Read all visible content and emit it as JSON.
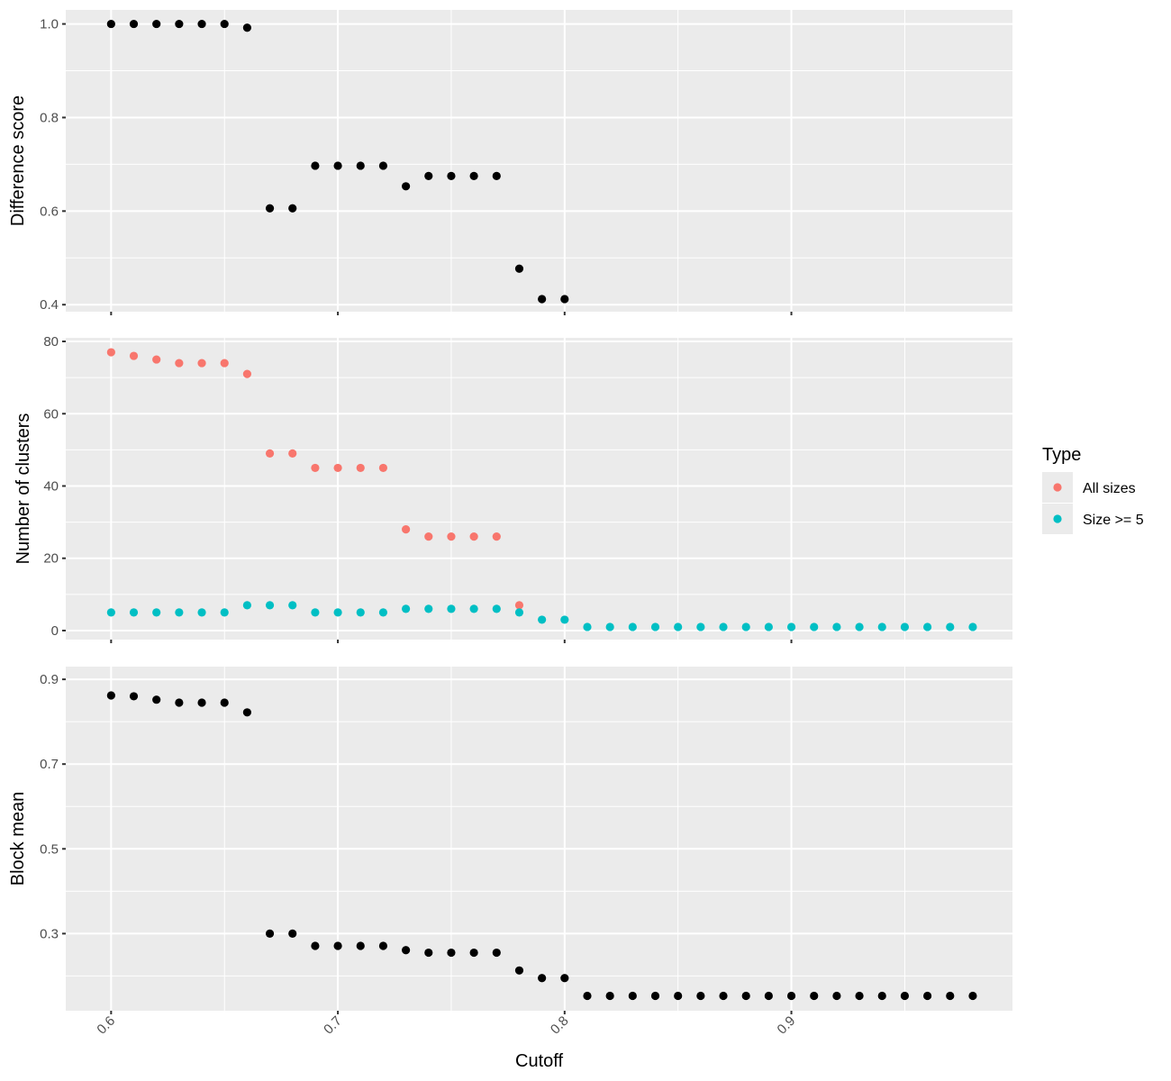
{
  "chart_data": [
    {
      "type": "scatter",
      "ylabel": "Difference score",
      "xlabel": "",
      "xlim": [
        0.58,
        0.9975
      ],
      "ylim": [
        0.385,
        1.03
      ],
      "y_ticks": [
        0.4,
        0.6,
        0.8,
        1.0
      ],
      "y_tick_labels": [
        "0.4",
        "0.6",
        "0.8",
        "1.0"
      ],
      "x_ticks": [
        0.6,
        0.7,
        0.8,
        0.9
      ],
      "grid": true,
      "color": "#000000",
      "x": [
        0.6,
        0.61,
        0.62,
        0.63,
        0.64,
        0.65,
        0.66,
        0.67,
        0.68,
        0.69,
        0.7,
        0.71,
        0.72,
        0.73,
        0.74,
        0.75,
        0.76,
        0.77,
        0.78,
        0.79,
        0.8
      ],
      "y": [
        1.0,
        1.0,
        1.0,
        1.0,
        1.0,
        1.0,
        0.992,
        0.606,
        0.606,
        0.697,
        0.697,
        0.697,
        0.697,
        0.653,
        0.675,
        0.675,
        0.675,
        0.675,
        0.477,
        0.412,
        0.412
      ]
    },
    {
      "type": "scatter",
      "ylabel": "Number of clusters",
      "xlabel": "",
      "xlim": [
        0.58,
        0.9975
      ],
      "ylim": [
        -2.5,
        81
      ],
      "y_ticks": [
        0,
        20,
        40,
        60,
        80
      ],
      "y_tick_labels": [
        "0",
        "20",
        "40",
        "60",
        "80"
      ],
      "x_ticks": [
        0.6,
        0.7,
        0.8,
        0.9
      ],
      "grid": true,
      "legend": {
        "title": "Type",
        "position": "right",
        "entries": [
          {
            "label": "All sizes",
            "color": "#F8766D"
          },
          {
            "label": "Size >= 5",
            "color": "#00BFC4"
          }
        ]
      },
      "series": [
        {
          "name": "All sizes",
          "color": "#F8766D",
          "x": [
            0.6,
            0.61,
            0.62,
            0.63,
            0.64,
            0.65,
            0.66,
            0.67,
            0.68,
            0.69,
            0.7,
            0.71,
            0.72,
            0.73,
            0.74,
            0.75,
            0.76,
            0.77,
            0.78
          ],
          "y": [
            77,
            76,
            75,
            74,
            74,
            74,
            71,
            49,
            49,
            45,
            45,
            45,
            45,
            28,
            26,
            26,
            26,
            26,
            7
          ]
        },
        {
          "name": "Size >= 5",
          "color": "#00BFC4",
          "x": [
            0.6,
            0.61,
            0.62,
            0.63,
            0.64,
            0.65,
            0.66,
            0.67,
            0.68,
            0.69,
            0.7,
            0.71,
            0.72,
            0.73,
            0.74,
            0.75,
            0.76,
            0.77,
            0.78,
            0.79,
            0.8,
            0.81,
            0.82,
            0.83,
            0.84,
            0.85,
            0.86,
            0.87,
            0.88,
            0.89,
            0.9,
            0.91,
            0.92,
            0.93,
            0.94,
            0.95,
            0.96,
            0.97,
            0.98
          ],
          "y": [
            5,
            5,
            5,
            5,
            5,
            5,
            7,
            7,
            7,
            5,
            5,
            5,
            5,
            6,
            6,
            6,
            6,
            6,
            5,
            3,
            3,
            1,
            1,
            1,
            1,
            1,
            1,
            1,
            1,
            1,
            1,
            1,
            1,
            1,
            1,
            1,
            1,
            1,
            1
          ]
        }
      ]
    },
    {
      "type": "scatter",
      "ylabel": "Block mean",
      "xlabel": "Cutoff",
      "xlim": [
        0.58,
        0.9975
      ],
      "ylim": [
        0.118,
        0.93
      ],
      "y_ticks": [
        0.3,
        0.5,
        0.7,
        0.9
      ],
      "y_tick_labels": [
        "0.3",
        "0.5",
        "0.7",
        "0.9"
      ],
      "x_ticks": [
        0.6,
        0.7,
        0.8,
        0.9
      ],
      "x_tick_labels": [
        "0.6",
        "0.7",
        "0.8",
        "0.9"
      ],
      "grid": true,
      "color": "#000000",
      "x": [
        0.6,
        0.61,
        0.62,
        0.63,
        0.64,
        0.65,
        0.66,
        0.67,
        0.68,
        0.69,
        0.7,
        0.71,
        0.72,
        0.73,
        0.74,
        0.75,
        0.76,
        0.77,
        0.78,
        0.79,
        0.8,
        0.81,
        0.82,
        0.83,
        0.84,
        0.85,
        0.86,
        0.87,
        0.88,
        0.89,
        0.9,
        0.91,
        0.92,
        0.93,
        0.94,
        0.95,
        0.96,
        0.97,
        0.98
      ],
      "y": [
        0.862,
        0.86,
        0.852,
        0.845,
        0.845,
        0.845,
        0.822,
        0.3,
        0.3,
        0.271,
        0.271,
        0.271,
        0.271,
        0.261,
        0.255,
        0.255,
        0.255,
        0.255,
        0.213,
        0.195,
        0.195,
        0.153,
        0.153,
        0.153,
        0.153,
        0.153,
        0.153,
        0.153,
        0.153,
        0.153,
        0.153,
        0.153,
        0.153,
        0.153,
        0.153,
        0.153,
        0.153,
        0.153,
        0.153
      ]
    }
  ]
}
